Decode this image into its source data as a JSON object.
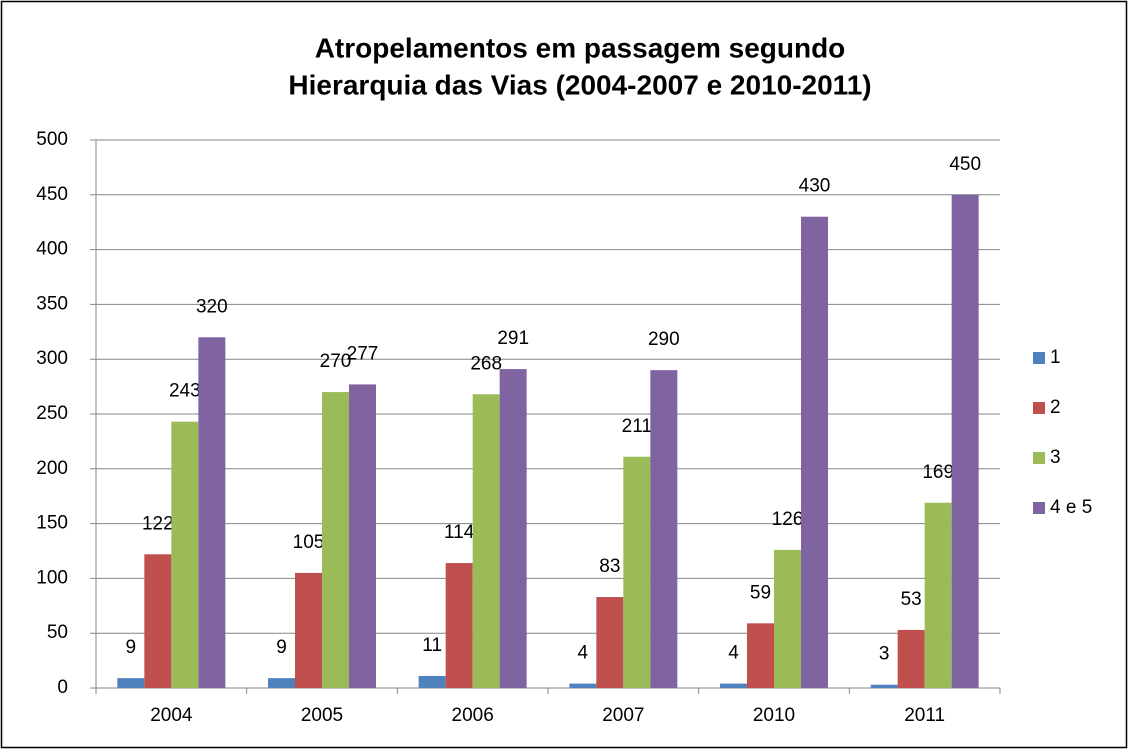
{
  "chart_data": {
    "type": "bar",
    "title": [
      "Atropelamentos em passagem segundo",
      "Hierarquia das Vias (2004-2007 e 2010-2011)"
    ],
    "categories": [
      "2004",
      "2005",
      "2006",
      "2007",
      "2010",
      "2011"
    ],
    "series": [
      {
        "name": "1",
        "color": "#4f81bd",
        "values": [
          9,
          9,
          11,
          4,
          4,
          3
        ]
      },
      {
        "name": "2",
        "color": "#c0504d",
        "values": [
          122,
          105,
          114,
          83,
          59,
          53
        ]
      },
      {
        "name": "3",
        "color": "#9bbb59",
        "values": [
          243,
          270,
          268,
          211,
          126,
          169
        ]
      },
      {
        "name": "4 e 5",
        "color": "#8064a2",
        "values": [
          320,
          277,
          291,
          290,
          430,
          450
        ]
      }
    ],
    "ylim": [
      0,
      500
    ],
    "yticks": [
      0,
      50,
      100,
      150,
      200,
      250,
      300,
      350,
      400,
      450,
      500
    ],
    "grid": true,
    "legend": "right"
  }
}
